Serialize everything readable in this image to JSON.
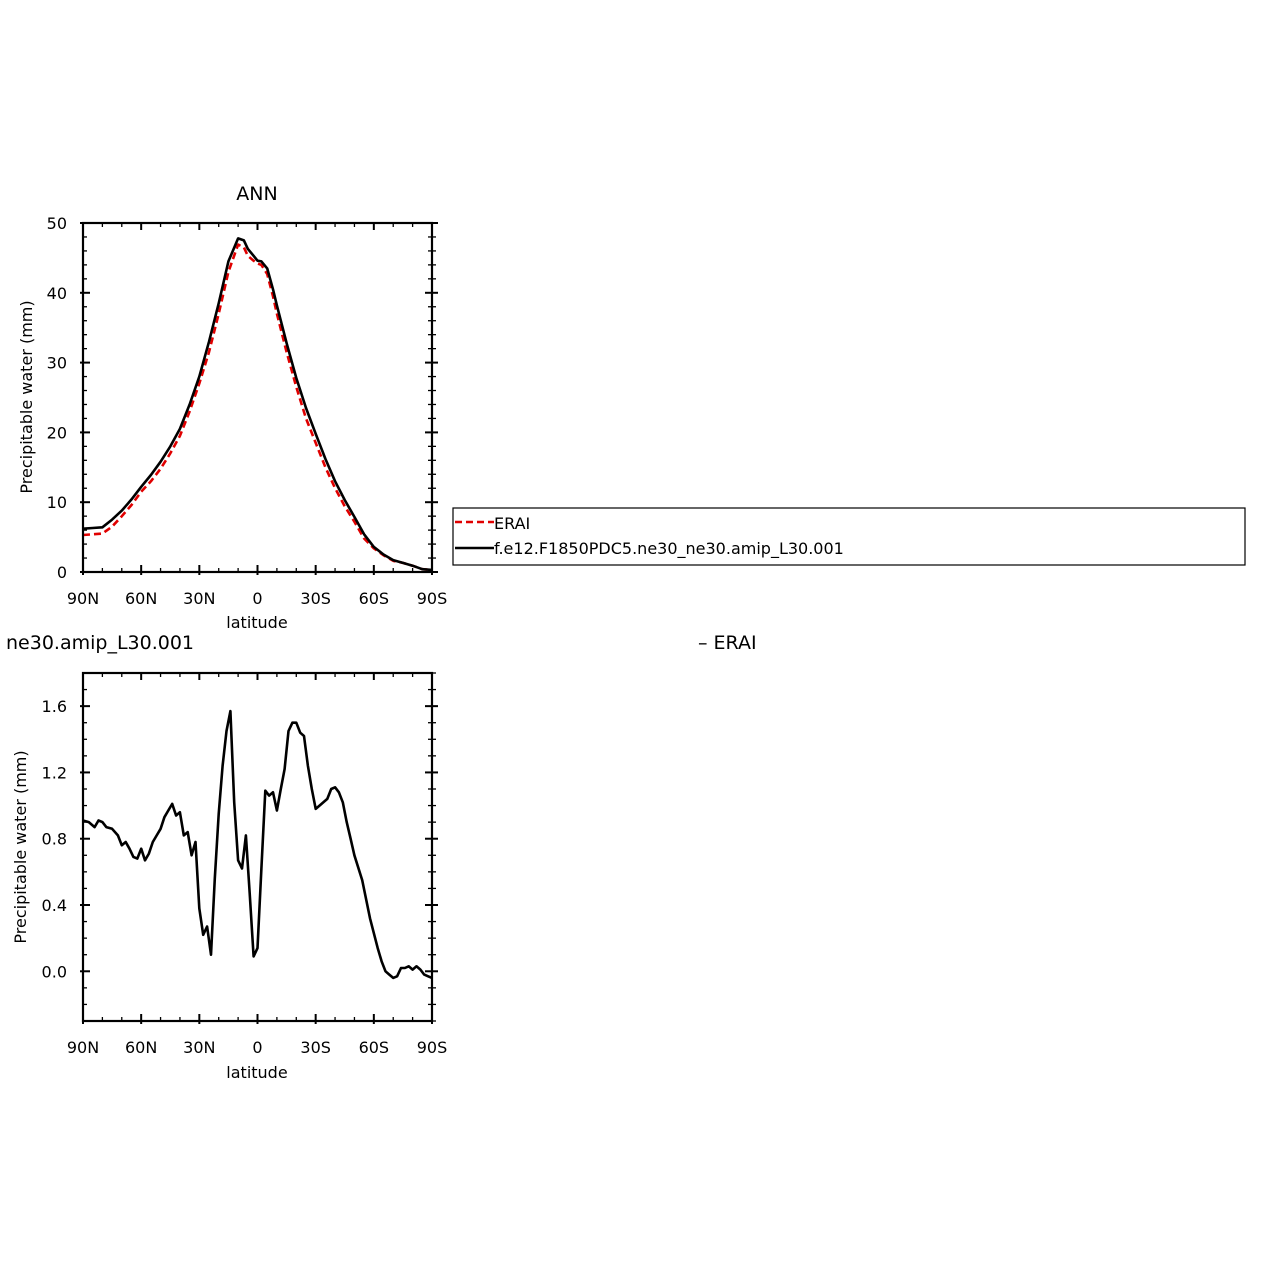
{
  "chart_data": [
    {
      "type": "line",
      "title": "ANN",
      "xlabel": "latitude",
      "ylabel": "Precipitable water (mm)",
      "xlim": [
        90,
        -90
      ],
      "ylim": [
        0,
        50
      ],
      "xticks": [
        90,
        60,
        30,
        0,
        -30,
        -60,
        -90
      ],
      "xtick_labels": [
        "90N",
        "60N",
        "30N",
        "0",
        "30S",
        "60S",
        "90S"
      ],
      "yticks": [
        0,
        10,
        20,
        30,
        40,
        50
      ],
      "ytick_labels": [
        "0",
        "10",
        "20",
        "30",
        "40",
        "50"
      ],
      "grid": false,
      "legend": {
        "placement": "right",
        "entries": [
          "ERAI",
          "f.e12.F1850PDC5.ne30_ne30.amip_L30.001"
        ]
      },
      "series": [
        {
          "name": "ERAI",
          "color": "#e00000",
          "style": "dashed",
          "x": [
            90,
            85,
            80,
            75,
            70,
            65,
            60,
            55,
            50,
            45,
            40,
            35,
            30,
            25,
            20,
            15,
            10,
            7,
            5,
            2,
            0,
            -2,
            -5,
            -8,
            -10,
            -15,
            -20,
            -25,
            -30,
            -35,
            -40,
            -45,
            -50,
            -55,
            -60,
            -65,
            -70,
            -75,
            -80,
            -85,
            -90
          ],
          "y": [
            5.3,
            5.4,
            5.5,
            6.5,
            8.0,
            9.6,
            11.5,
            13.0,
            14.8,
            17.0,
            19.5,
            23.0,
            27.0,
            31.5,
            37.0,
            43.0,
            46.9,
            46.5,
            45.3,
            44.6,
            44.2,
            44.0,
            42.7,
            39.5,
            37.0,
            31.5,
            26.5,
            22.0,
            18.5,
            15.0,
            12.0,
            9.4,
            7.2,
            4.8,
            3.4,
            2.4,
            1.6,
            1.3,
            0.9,
            0.4,
            0.3
          ]
        },
        {
          "name": "f.e12.F1850PDC5.ne30_ne30.amip_L30.001",
          "color": "#000000",
          "style": "solid",
          "x": [
            90,
            85,
            80,
            75,
            70,
            65,
            60,
            55,
            50,
            45,
            40,
            35,
            30,
            25,
            20,
            15,
            10,
            7,
            5,
            2,
            0,
            -2,
            -5,
            -8,
            -10,
            -15,
            -20,
            -25,
            -30,
            -35,
            -40,
            -45,
            -50,
            -55,
            -60,
            -65,
            -70,
            -75,
            -80,
            -85,
            -90
          ],
          "y": [
            6.2,
            6.3,
            6.4,
            7.5,
            8.8,
            10.4,
            12.2,
            13.9,
            15.8,
            18.0,
            20.5,
            24.0,
            28.0,
            33.0,
            38.5,
            44.5,
            47.8,
            47.5,
            46.3,
            45.3,
            44.6,
            44.5,
            43.5,
            40.5,
            38.2,
            32.8,
            27.8,
            23.5,
            19.8,
            16.2,
            13.0,
            10.3,
            7.9,
            5.4,
            3.6,
            2.5,
            1.7,
            1.3,
            0.9,
            0.4,
            0.3
          ]
        }
      ]
    },
    {
      "type": "line",
      "title": "ne30.amip_L30.001",
      "title_right": "– ERAI",
      "xlabel": "latitude",
      "ylabel": "Precipitable water (mm)",
      "xlim": [
        90,
        -90
      ],
      "ylim": [
        -0.3,
        1.8
      ],
      "xticks": [
        90,
        60,
        30,
        0,
        -30,
        -60,
        -90
      ],
      "xtick_labels": [
        "90N",
        "60N",
        "30N",
        "0",
        "30S",
        "60S",
        "90S"
      ],
      "yticks": [
        0.0,
        0.4,
        0.8,
        1.2,
        1.6
      ],
      "ytick_labels": [
        "0.0",
        "0.4",
        "0.8",
        "1.2",
        "1.6"
      ],
      "grid": false,
      "series": [
        {
          "color": "#000000",
          "style": "solid",
          "x": [
            90,
            87,
            84,
            82,
            80,
            78,
            75,
            72,
            70,
            68,
            66,
            64,
            62,
            60,
            58,
            56,
            54,
            52,
            50,
            48,
            46,
            44,
            42,
            40,
            38,
            36,
            34,
            32,
            30,
            28,
            26,
            24,
            22,
            20,
            18,
            16,
            14,
            12,
            10,
            8,
            6,
            4,
            2,
            0,
            -2,
            -4,
            -6,
            -8,
            -10,
            -12,
            -14,
            -16,
            -18,
            -20,
            -22,
            -24,
            -26,
            -28,
            -30,
            -32,
            -34,
            -36,
            -38,
            -40,
            -42,
            -44,
            -46,
            -48,
            -50,
            -54,
            -58,
            -62,
            -64,
            -66,
            -68,
            -70,
            -72,
            -74,
            -76,
            -78,
            -80,
            -82,
            -84,
            -86,
            -88,
            -90
          ],
          "y": [
            0.91,
            0.9,
            0.87,
            0.91,
            0.9,
            0.87,
            0.86,
            0.82,
            0.76,
            0.78,
            0.74,
            0.69,
            0.68,
            0.74,
            0.67,
            0.71,
            0.78,
            0.82,
            0.86,
            0.93,
            0.97,
            1.01,
            0.94,
            0.96,
            0.82,
            0.84,
            0.7,
            0.78,
            0.38,
            0.22,
            0.27,
            0.1,
            0.56,
            0.95,
            1.24,
            1.45,
            1.57,
            1.02,
            0.67,
            0.62,
            0.82,
            0.47,
            0.09,
            0.14,
            0.62,
            1.09,
            1.06,
            1.08,
            0.97,
            1.1,
            1.22,
            1.45,
            1.5,
            1.5,
            1.44,
            1.42,
            1.24,
            1.1,
            0.98,
            1.0,
            1.02,
            1.04,
            1.1,
            1.11,
            1.08,
            1.02,
            0.9,
            0.8,
            0.7,
            0.55,
            0.32,
            0.14,
            0.06,
            0.0,
            -0.02,
            -0.04,
            -0.03,
            0.02,
            0.02,
            0.03,
            0.01,
            0.03,
            0.01,
            -0.02,
            -0.03,
            -0.04
          ]
        }
      ]
    }
  ]
}
